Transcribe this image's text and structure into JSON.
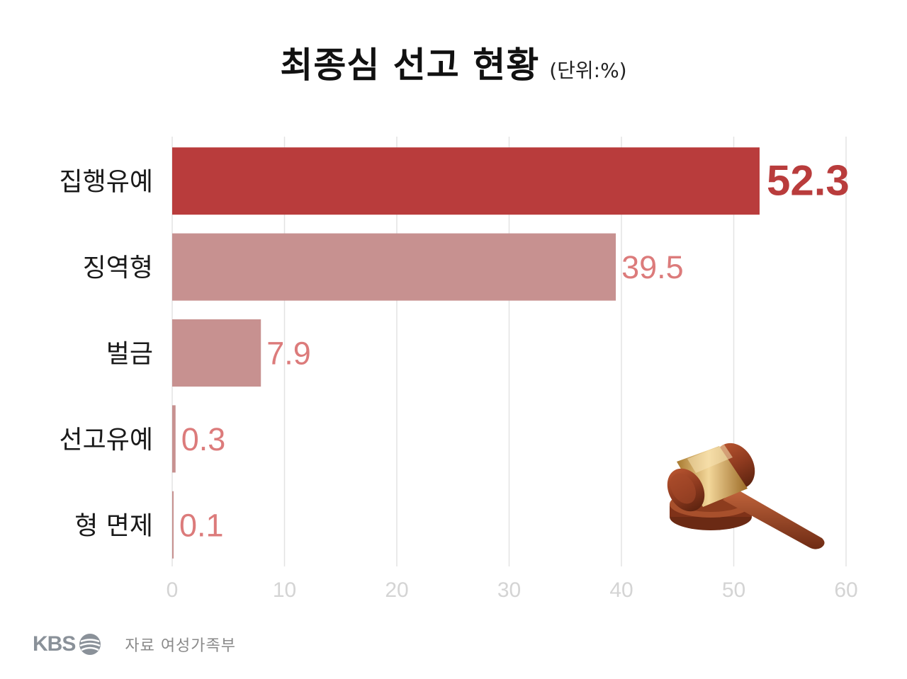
{
  "title": "최종심 선고 현황",
  "unit": "(단위:%)",
  "footer": {
    "logo_text": "KBS",
    "source": "자료 여성가족부"
  },
  "colors": {
    "highlight_bar": "#b93c3c",
    "bar": "#c79190",
    "highlight_label": "#b93c3c",
    "label": "#dc7b7b",
    "grid": "#e3e3e3",
    "tick": "#d4d4d4"
  },
  "illustration": "gavel-icon",
  "chart_data": {
    "type": "bar",
    "orientation": "horizontal",
    "categories": [
      "집행유예",
      "징역형",
      "벌금",
      "선고유예",
      "형 면제"
    ],
    "values": [
      52.3,
      39.5,
      7.9,
      0.3,
      0.1
    ],
    "value_labels": [
      "52.3",
      "39.5",
      "7.9",
      "0.3",
      "0.1"
    ],
    "highlight_index": 0,
    "xlim": [
      0,
      60
    ],
    "xticks": [
      "0",
      "10",
      "20",
      "30",
      "40",
      "50",
      "60"
    ],
    "grid": "vertical",
    "title": "최종심 선고 현황",
    "xlabel": "",
    "ylabel": ""
  }
}
